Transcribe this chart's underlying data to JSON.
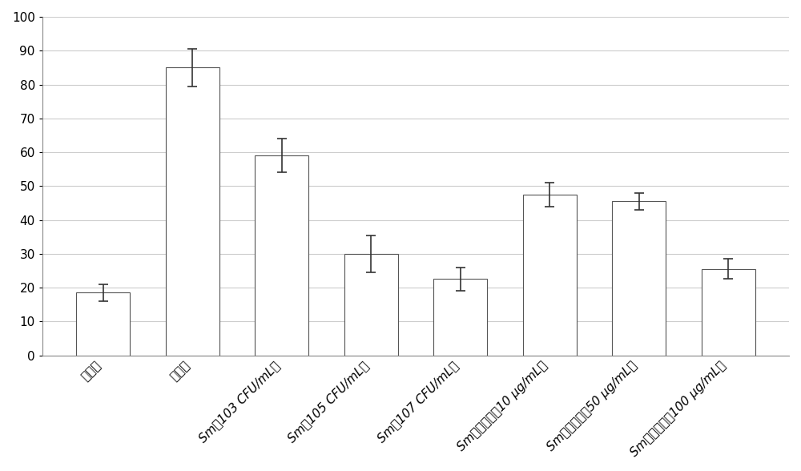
{
  "categories": [
    "噻唑锌",
    "灭菌水",
    "Sm（103 CFU/mL）",
    "Sm（105 CFU/mL）",
    "Sm（107 CFU/mL）",
    "Sm发酵产物（10 μg/mL）",
    "Sm发酵产物（50 μg/mL）",
    "Sm发酵产物（100 μg/mL）"
  ],
  "values": [
    18.5,
    85.0,
    59.0,
    30.0,
    22.5,
    47.5,
    45.5,
    25.5
  ],
  "errors": [
    2.5,
    5.5,
    5.0,
    5.5,
    3.5,
    3.5,
    2.5,
    3.0
  ],
  "bar_color": "#ffffff",
  "bar_edge_color": "#555555",
  "bar_width": 0.6,
  "ylim": [
    0,
    100
  ],
  "yticks": [
    0,
    10,
    20,
    30,
    40,
    50,
    60,
    70,
    80,
    90,
    100
  ],
  "background_color": "#ffffff",
  "grid_color": "#cccccc",
  "tick_label_fontsize": 11,
  "axis_label_fontsize": 11
}
